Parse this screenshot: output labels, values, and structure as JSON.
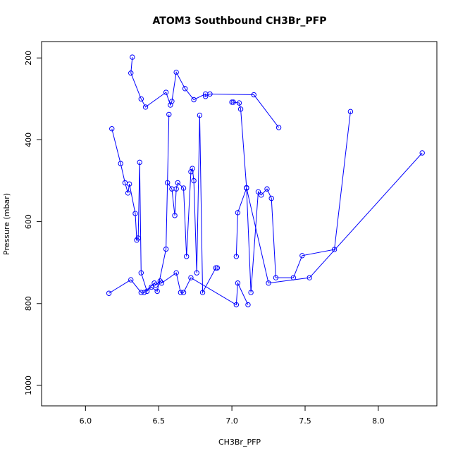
{
  "chart_data": {
    "type": "line",
    "title": "ATOM3 Southbound CH3Br_PFP",
    "xlabel": "CH3Br_PFP",
    "ylabel": "Pressure (mbar)",
    "xlim": [
      5.7,
      8.4
    ],
    "ylim": [
      1050,
      160
    ],
    "y_reversed": true,
    "x_ticks": [
      6.0,
      6.5,
      7.0,
      7.5,
      8.0
    ],
    "x_tick_labels": [
      "6.0",
      "6.5",
      "7.0",
      "7.5",
      "8.0"
    ],
    "y_ticks": [
      200,
      400,
      600,
      800,
      1000
    ],
    "y_tick_labels": [
      "200",
      "400",
      "600",
      "800",
      "1000"
    ],
    "series_color": "#0000ff",
    "markers": "open-circle",
    "series": [
      {
        "x": [
          6.32,
          6.31,
          6.38,
          6.41,
          6.55,
          6.58,
          6.59,
          6.62,
          6.68,
          6.74,
          6.82,
          6.82,
          6.85,
          7.15,
          7.32
        ],
        "y": [
          198,
          237,
          300,
          320,
          284,
          315,
          306,
          235,
          275,
          302,
          288,
          294,
          288,
          290,
          370
        ]
      },
      {
        "x": [
          7.81,
          7.7,
          7.48,
          7.42,
          7.3,
          7.27,
          7.24,
          7.2,
          7.18,
          7.13,
          7.1,
          7.06,
          7.05,
          7.01,
          7.0
        ],
        "y": [
          331,
          668,
          683,
          737,
          737,
          543,
          520,
          535,
          527,
          773,
          517,
          325,
          310,
          308,
          308
        ]
      },
      {
        "x": [
          6.18,
          6.24,
          6.27,
          6.29,
          6.3,
          6.34,
          6.35,
          6.36,
          6.37,
          6.38,
          6.42,
          6.45,
          6.49,
          6.55,
          6.57
        ],
        "y": [
          373,
          458,
          505,
          530,
          508,
          580,
          645,
          640,
          455,
          725,
          770,
          760,
          770,
          667,
          338
        ]
      },
      {
        "x": [
          6.56,
          6.59,
          6.61,
          6.62,
          6.63,
          6.67,
          6.69,
          6.72,
          6.73,
          6.74,
          6.76,
          6.78,
          6.8,
          6.89,
          6.9
        ],
        "y": [
          505,
          520,
          585,
          520,
          505,
          518,
          685,
          478,
          470,
          500,
          725,
          340,
          773,
          713,
          713
        ]
      },
      {
        "x": [
          6.16,
          6.31,
          6.38,
          6.4,
          6.47,
          6.48,
          6.51,
          6.52,
          6.62,
          6.65,
          6.67,
          6.72,
          7.03,
          7.04,
          7.11
        ],
        "y": [
          775,
          742,
          773,
          773,
          750,
          755,
          745,
          750,
          725,
          773,
          773,
          737,
          803,
          750,
          803
        ]
      },
      {
        "x": [
          7.03,
          7.04,
          7.1,
          7.25,
          7.53,
          8.3
        ],
        "y": [
          685,
          578,
          518,
          750,
          737,
          432
        ]
      }
    ]
  }
}
